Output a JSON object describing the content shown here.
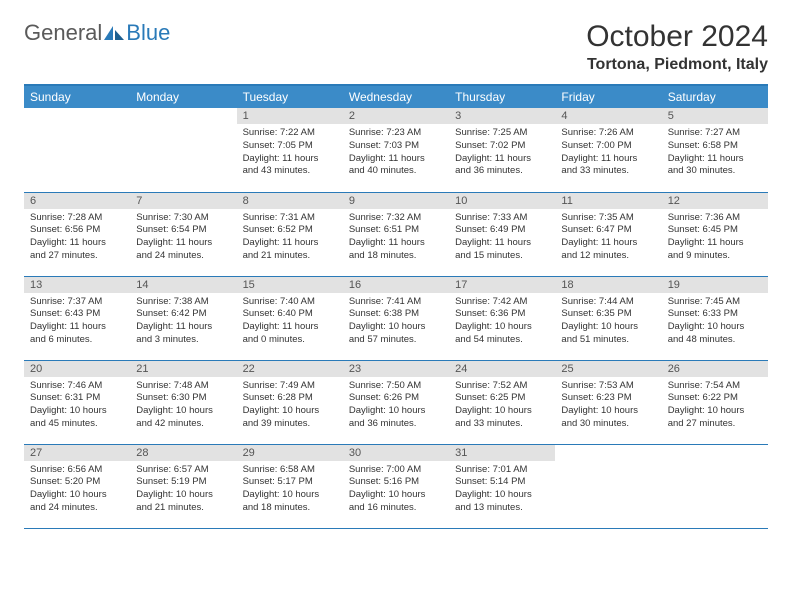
{
  "logo": {
    "text1": "General",
    "text2": "Blue"
  },
  "title": "October 2024",
  "location": "Tortona, Piedmont, Italy",
  "colors": {
    "header_bg": "#3b8bc8",
    "header_border": "#2a7ab8",
    "daynum_bg": "#e2e2e2",
    "text": "#333333",
    "logo_gray": "#5a5a5a",
    "logo_blue": "#2a7ab8",
    "page_bg": "#ffffff"
  },
  "weekdays": [
    "Sunday",
    "Monday",
    "Tuesday",
    "Wednesday",
    "Thursday",
    "Friday",
    "Saturday"
  ],
  "weeks": [
    [
      null,
      null,
      {
        "n": "1",
        "sr": "7:22 AM",
        "ss": "7:05 PM",
        "dl": "11 hours and 43 minutes."
      },
      {
        "n": "2",
        "sr": "7:23 AM",
        "ss": "7:03 PM",
        "dl": "11 hours and 40 minutes."
      },
      {
        "n": "3",
        "sr": "7:25 AM",
        "ss": "7:02 PM",
        "dl": "11 hours and 36 minutes."
      },
      {
        "n": "4",
        "sr": "7:26 AM",
        "ss": "7:00 PM",
        "dl": "11 hours and 33 minutes."
      },
      {
        "n": "5",
        "sr": "7:27 AM",
        "ss": "6:58 PM",
        "dl": "11 hours and 30 minutes."
      }
    ],
    [
      {
        "n": "6",
        "sr": "7:28 AM",
        "ss": "6:56 PM",
        "dl": "11 hours and 27 minutes."
      },
      {
        "n": "7",
        "sr": "7:30 AM",
        "ss": "6:54 PM",
        "dl": "11 hours and 24 minutes."
      },
      {
        "n": "8",
        "sr": "7:31 AM",
        "ss": "6:52 PM",
        "dl": "11 hours and 21 minutes."
      },
      {
        "n": "9",
        "sr": "7:32 AM",
        "ss": "6:51 PM",
        "dl": "11 hours and 18 minutes."
      },
      {
        "n": "10",
        "sr": "7:33 AM",
        "ss": "6:49 PM",
        "dl": "11 hours and 15 minutes."
      },
      {
        "n": "11",
        "sr": "7:35 AM",
        "ss": "6:47 PM",
        "dl": "11 hours and 12 minutes."
      },
      {
        "n": "12",
        "sr": "7:36 AM",
        "ss": "6:45 PM",
        "dl": "11 hours and 9 minutes."
      }
    ],
    [
      {
        "n": "13",
        "sr": "7:37 AM",
        "ss": "6:43 PM",
        "dl": "11 hours and 6 minutes."
      },
      {
        "n": "14",
        "sr": "7:38 AM",
        "ss": "6:42 PM",
        "dl": "11 hours and 3 minutes."
      },
      {
        "n": "15",
        "sr": "7:40 AM",
        "ss": "6:40 PM",
        "dl": "11 hours and 0 minutes."
      },
      {
        "n": "16",
        "sr": "7:41 AM",
        "ss": "6:38 PM",
        "dl": "10 hours and 57 minutes."
      },
      {
        "n": "17",
        "sr": "7:42 AM",
        "ss": "6:36 PM",
        "dl": "10 hours and 54 minutes."
      },
      {
        "n": "18",
        "sr": "7:44 AM",
        "ss": "6:35 PM",
        "dl": "10 hours and 51 minutes."
      },
      {
        "n": "19",
        "sr": "7:45 AM",
        "ss": "6:33 PM",
        "dl": "10 hours and 48 minutes."
      }
    ],
    [
      {
        "n": "20",
        "sr": "7:46 AM",
        "ss": "6:31 PM",
        "dl": "10 hours and 45 minutes."
      },
      {
        "n": "21",
        "sr": "7:48 AM",
        "ss": "6:30 PM",
        "dl": "10 hours and 42 minutes."
      },
      {
        "n": "22",
        "sr": "7:49 AM",
        "ss": "6:28 PM",
        "dl": "10 hours and 39 minutes."
      },
      {
        "n": "23",
        "sr": "7:50 AM",
        "ss": "6:26 PM",
        "dl": "10 hours and 36 minutes."
      },
      {
        "n": "24",
        "sr": "7:52 AM",
        "ss": "6:25 PM",
        "dl": "10 hours and 33 minutes."
      },
      {
        "n": "25",
        "sr": "7:53 AM",
        "ss": "6:23 PM",
        "dl": "10 hours and 30 minutes."
      },
      {
        "n": "26",
        "sr": "7:54 AM",
        "ss": "6:22 PM",
        "dl": "10 hours and 27 minutes."
      }
    ],
    [
      {
        "n": "27",
        "sr": "6:56 AM",
        "ss": "5:20 PM",
        "dl": "10 hours and 24 minutes."
      },
      {
        "n": "28",
        "sr": "6:57 AM",
        "ss": "5:19 PM",
        "dl": "10 hours and 21 minutes."
      },
      {
        "n": "29",
        "sr": "6:58 AM",
        "ss": "5:17 PM",
        "dl": "10 hours and 18 minutes."
      },
      {
        "n": "30",
        "sr": "7:00 AM",
        "ss": "5:16 PM",
        "dl": "10 hours and 16 minutes."
      },
      {
        "n": "31",
        "sr": "7:01 AM",
        "ss": "5:14 PM",
        "dl": "10 hours and 13 minutes."
      },
      null,
      null
    ]
  ],
  "labels": {
    "sunrise": "Sunrise:",
    "sunset": "Sunset:",
    "daylight": "Daylight:"
  }
}
